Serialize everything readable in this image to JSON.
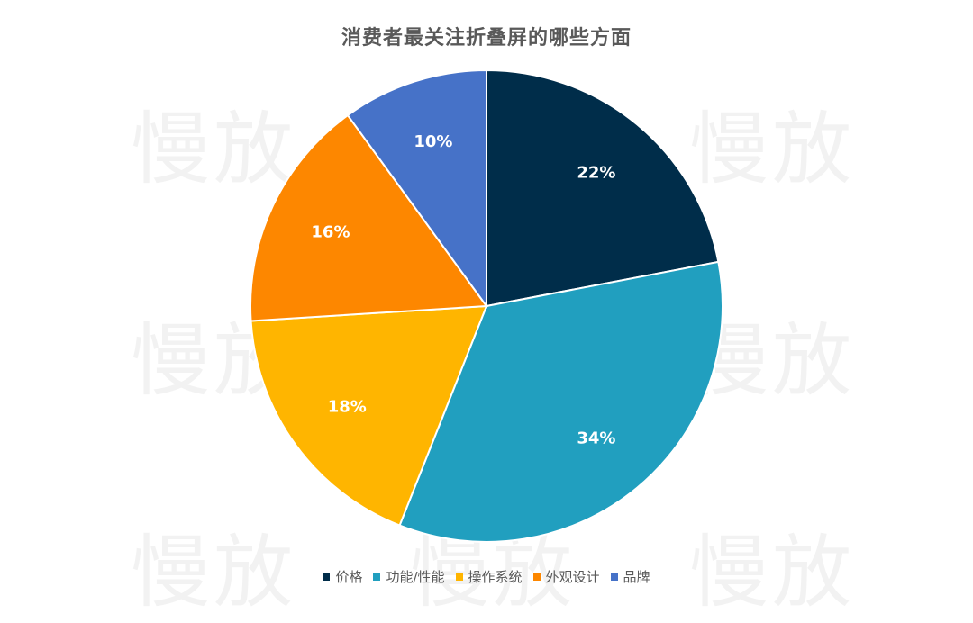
{
  "watermark_text": "慢放",
  "chart_data": {
    "type": "pie",
    "title": "消费者最关注折叠屏的哪些方面",
    "categories": [
      "价格",
      "功能/性能",
      "操作系统",
      "外观设计",
      "品牌"
    ],
    "values": [
      22,
      34,
      18,
      16,
      10
    ],
    "labels": [
      "22%",
      "34%",
      "18%",
      "16%",
      "10%"
    ],
    "colors": [
      "#002d4a",
      "#219fbf",
      "#ffb500",
      "#fd8700",
      "#4672c8"
    ],
    "legend_position": "bottom"
  }
}
